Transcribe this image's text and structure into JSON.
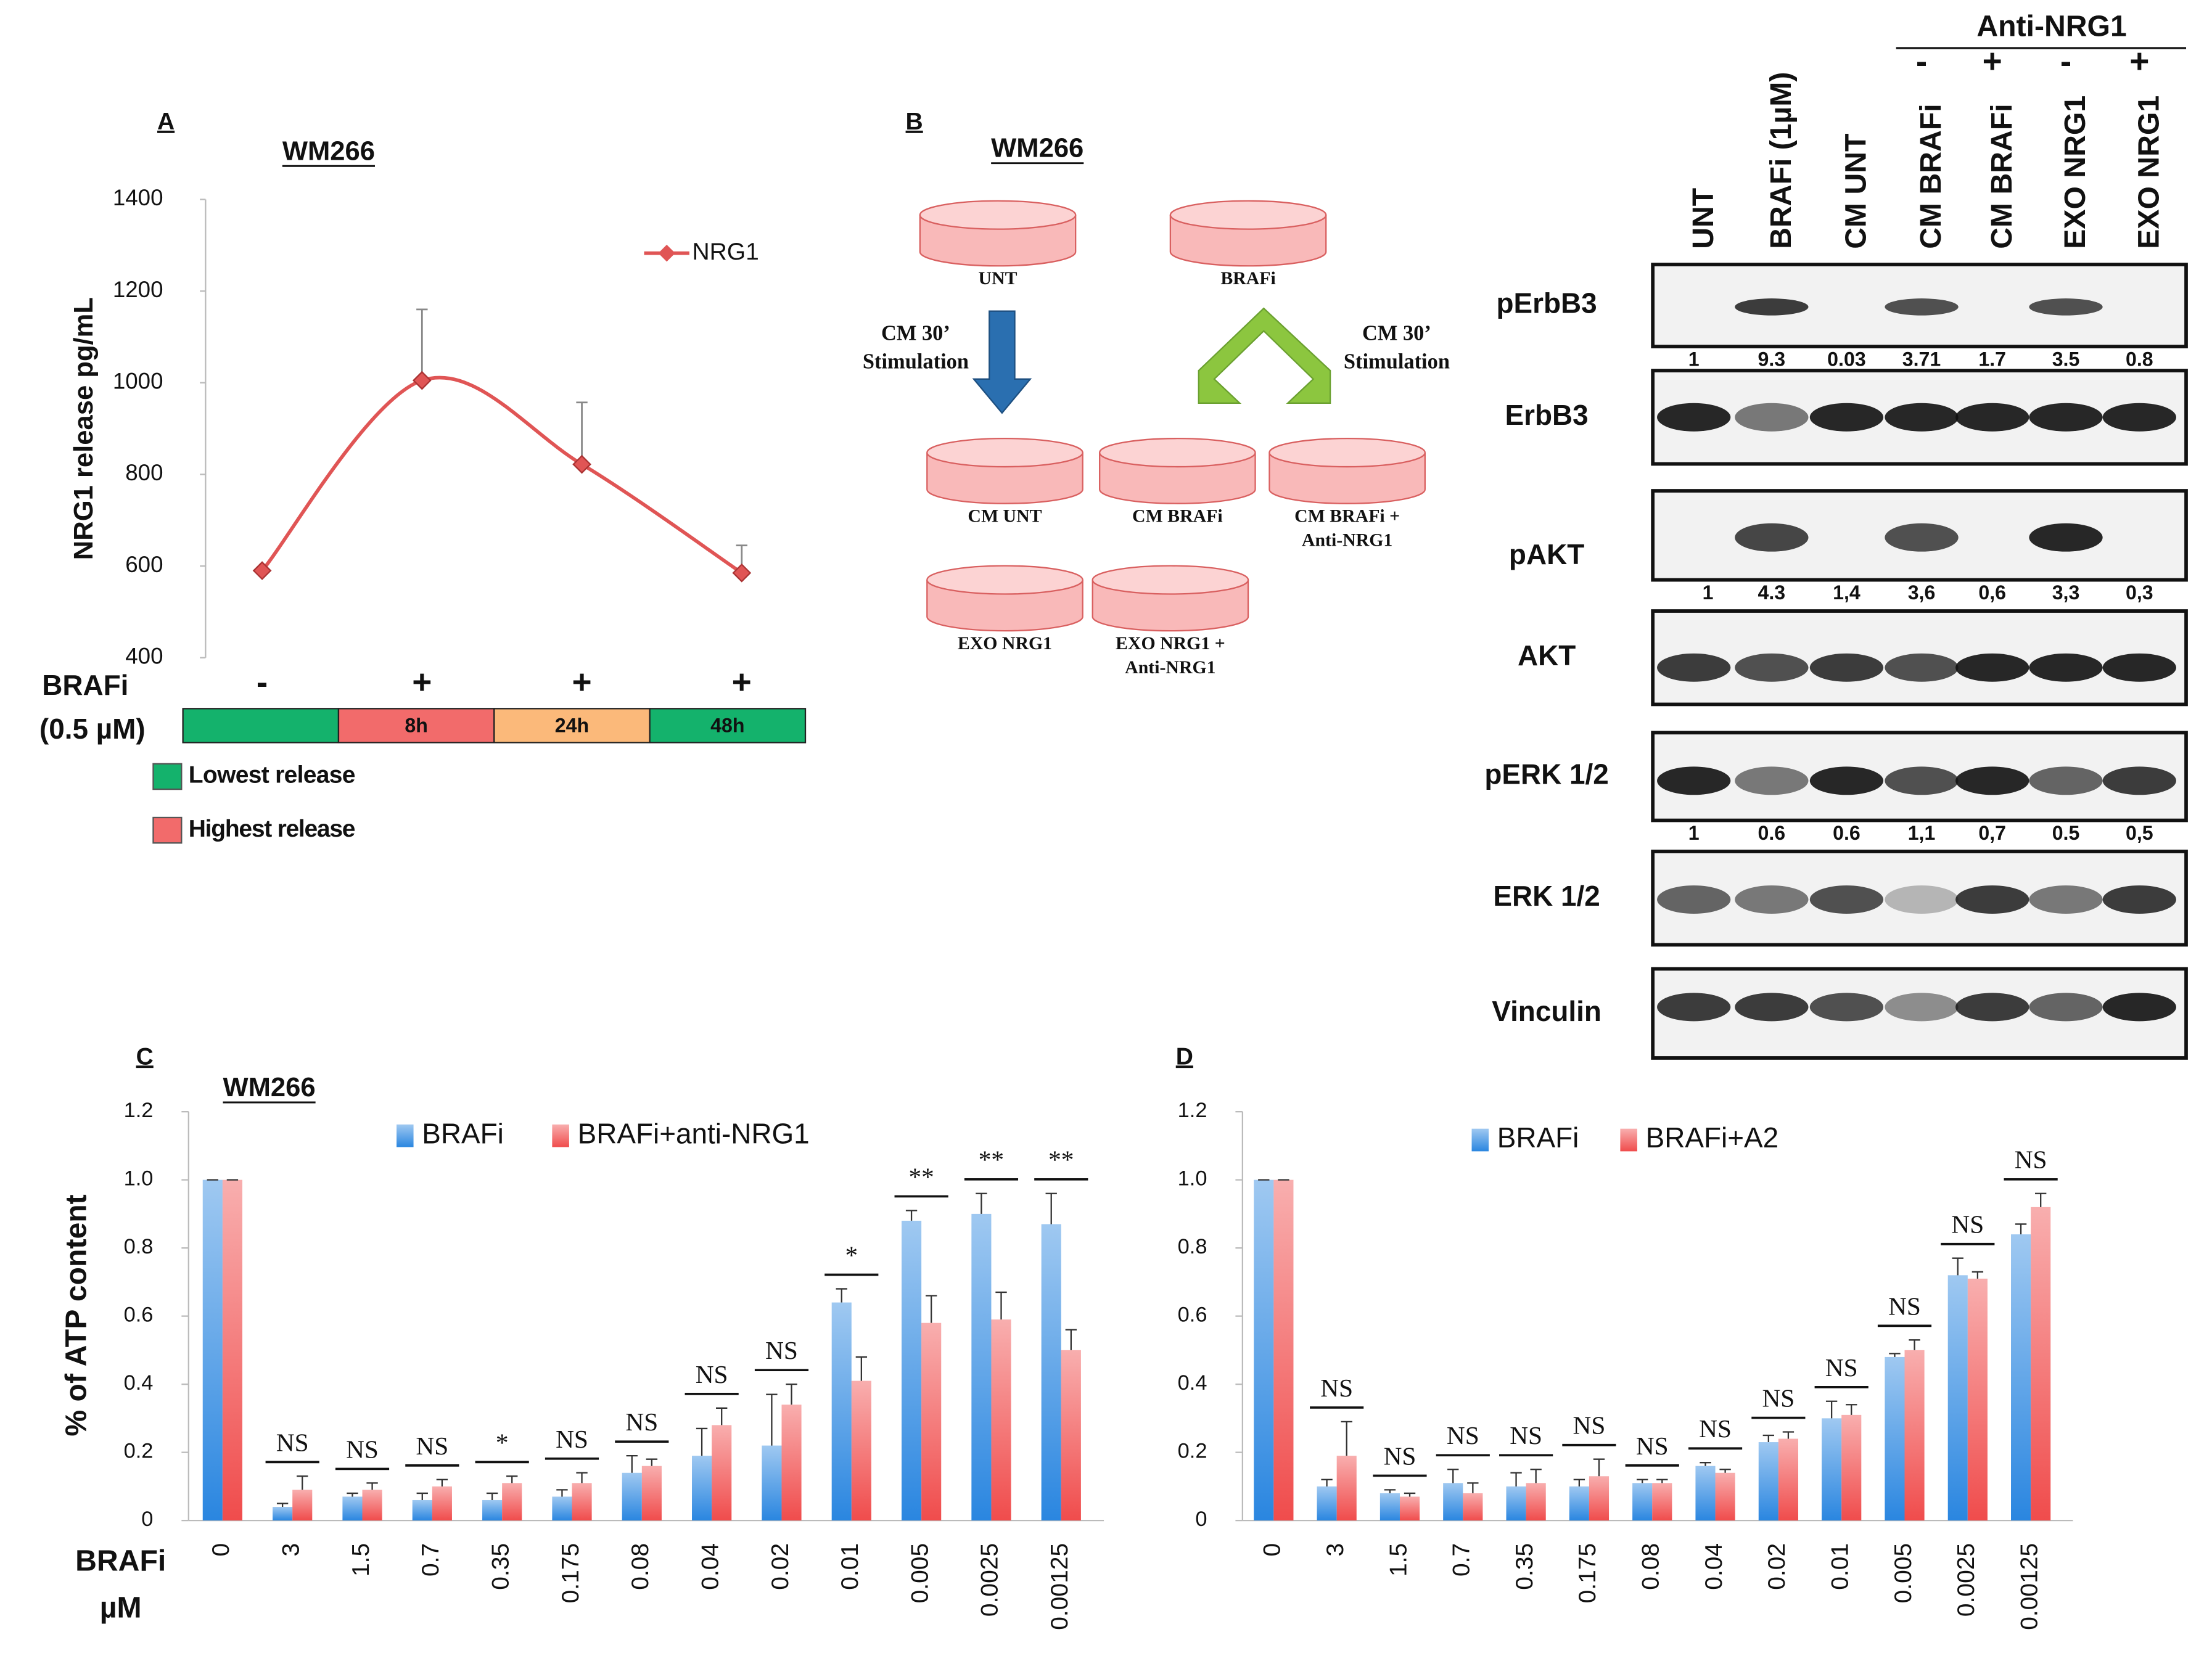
{
  "chart_data": [
    {
      "type": "line",
      "panel": "A",
      "title": "WM266",
      "y_label": "NRG1 release pg/mL",
      "x_label": "BRAFi",
      "x_label_2": "(0.5 µM)",
      "categories": [
        "-",
        "+",
        "+",
        "+"
      ],
      "timeline": [
        null,
        "8h",
        "24h",
        "48h"
      ],
      "timeline_colors": [
        "#14b26c",
        "#f26b6b",
        "#fbb97a",
        "#14b26c"
      ],
      "legend_items": [
        {
          "label": "Lowest release",
          "color": "#14b26c"
        },
        {
          "label": "Highest release",
          "color": "#f26b6b"
        }
      ],
      "series": [
        {
          "name": "NRG1",
          "color": "#e05555",
          "values": [
            590,
            1005,
            822,
            585
          ],
          "errors": [
            null,
            155,
            135,
            60
          ]
        }
      ],
      "ylim": [
        400,
        1400
      ],
      "yticks": [
        400,
        600,
        800,
        1000,
        1200,
        1400
      ]
    },
    {
      "type": "bar",
      "panel": "C",
      "title": "WM266",
      "y_label": "% of ATP content",
      "x_label": "BRAFi",
      "x_label_2": "µM",
      "categories": [
        "0",
        "3",
        "1.5",
        "0.7",
        "0.35",
        "0.175",
        "0.08",
        "0.04",
        "0.02",
        "0.01",
        "0.005",
        "0.0025",
        "0.00125"
      ],
      "series": [
        {
          "name": "BRAFi",
          "color": "#2a86e0",
          "values": [
            1.0,
            0.04,
            0.07,
            0.06,
            0.06,
            0.07,
            0.14,
            0.19,
            0.22,
            0.64,
            0.88,
            0.9,
            0.87
          ],
          "errors": [
            0,
            0.01,
            0.01,
            0.02,
            0.02,
            0.02,
            0.05,
            0.08,
            0.15,
            0.04,
            0.03,
            0.06,
            0.09
          ]
        },
        {
          "name": "BRAFi+anti-NRG1",
          "color": "#f04c4c",
          "values": [
            1.0,
            0.09,
            0.09,
            0.1,
            0.11,
            0.11,
            0.16,
            0.28,
            0.34,
            0.41,
            0.58,
            0.59,
            0.5
          ],
          "errors": [
            0,
            0.04,
            0.02,
            0.02,
            0.02,
            0.03,
            0.02,
            0.05,
            0.06,
            0.07,
            0.08,
            0.08,
            0.06
          ]
        }
      ],
      "significance": [
        null,
        "NS",
        "NS",
        "NS",
        "*",
        "NS",
        "NS",
        "NS",
        "NS",
        "*",
        "**",
        "**",
        "**"
      ],
      "ylim": [
        0,
        1.2
      ],
      "yticks": [
        0,
        0.2,
        0.4,
        0.6,
        0.8,
        {
          "value": 1,
          "label": "1.0"
        },
        1.2
      ]
    },
    {
      "type": "bar",
      "panel": "D",
      "categories": [
        "0",
        "3",
        "1.5",
        "0.7",
        "0.35",
        "0.175",
        "0.08",
        "0.04",
        "0.02",
        "0.01",
        "0.005",
        "0.0025",
        "0.00125"
      ],
      "series": [
        {
          "name": "BRAFi",
          "color": "#2a86e0",
          "values": [
            1.0,
            0.1,
            0.08,
            0.11,
            0.1,
            0.1,
            0.11,
            0.16,
            0.23,
            0.3,
            0.48,
            0.72,
            0.84
          ],
          "errors": [
            0,
            0.02,
            0.01,
            0.04,
            0.04,
            0.02,
            0.01,
            0.01,
            0.02,
            0.05,
            0.01,
            0.05,
            0.03
          ]
        },
        {
          "name": "BRAFi+A2",
          "color": "#f04c4c",
          "values": [
            1.0,
            0.19,
            0.07,
            0.08,
            0.11,
            0.13,
            0.11,
            0.14,
            0.24,
            0.31,
            0.5,
            0.71,
            0.92
          ],
          "errors": [
            0,
            0.1,
            0.01,
            0.03,
            0.04,
            0.05,
            0.01,
            0.01,
            0.02,
            0.03,
            0.03,
            0.02,
            0.04
          ]
        }
      ],
      "significance": [
        null,
        "NS",
        "NS",
        "NS",
        "NS",
        "NS",
        "NS",
        "NS",
        "NS",
        "NS",
        "NS",
        "NS",
        "NS"
      ],
      "ylim": [
        0,
        1.2
      ],
      "yticks": [
        0,
        0.2,
        0.4,
        0.6,
        0.8,
        {
          "value": 1,
          "label": "1.0"
        },
        1.2
      ]
    }
  ],
  "diagram": {
    "panel": "B",
    "title": "WM266",
    "dishes": [
      {
        "lines": [
          "UNT"
        ]
      },
      {
        "lines": [
          "BRAFi"
        ]
      },
      {
        "lines": [
          "CM UNT"
        ]
      },
      {
        "lines": [
          "CM BRAFi"
        ]
      },
      {
        "lines": [
          "CM BRAFi +",
          "Anti-NRG1"
        ]
      },
      {
        "lines": [
          "EXO NRG1"
        ]
      },
      {
        "lines": [
          "EXO NRG1 +",
          "Anti-NRG1"
        ]
      }
    ],
    "arrows": [
      {
        "lines": [
          "CM 30’",
          "Stimulation"
        ]
      },
      {
        "lines": [
          "CM 30’",
          "Stimulation"
        ]
      }
    ]
  },
  "blot": {
    "header": "Anti-NRG1",
    "signs": [
      "-",
      "+",
      "-",
      "+"
    ],
    "lanes": [
      "UNT",
      "BRAFi (1µM)",
      "CM UNT",
      "CM BRAFi",
      "CM BRAFi",
      "EXO NRG1",
      "EXO NRG1"
    ],
    "rows": [
      {
        "name": "pErbB3",
        "quant": [
          "1",
          "9.3",
          "0.03",
          "3.71",
          "1.7",
          "3.5",
          "0.8"
        ]
      },
      {
        "name": "ErbB3"
      },
      {
        "name": "pAKT",
        "quant": [
          "1",
          "4.3",
          "1,4",
          "3,6",
          "0,6",
          "3,3",
          "0,3"
        ]
      },
      {
        "name": "AKT"
      },
      {
        "name": "pERK 1/2",
        "quant": [
          "1",
          "0.6",
          "0.6",
          "1,1",
          "0,7",
          "0.5",
          "0,5"
        ]
      },
      {
        "name": "ERK 1/2"
      },
      {
        "name": "Vinculin"
      }
    ]
  }
}
